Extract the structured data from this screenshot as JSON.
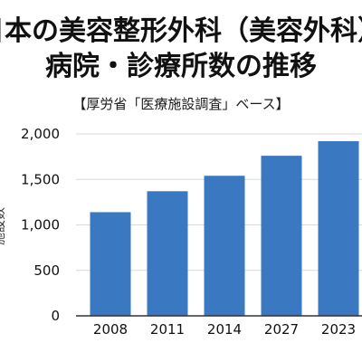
{
  "chart_data": {
    "type": "bar",
    "title_lines": [
      "日本の美容整形外科（美容外科）",
      "病院・診療所数の推移"
    ],
    "subtitle": "【厚労省「医療施設調査」ベース】",
    "categories": [
      "2008",
      "2011",
      "2014",
      "2027",
      "2023"
    ],
    "values": [
      1140,
      1370,
      1540,
      1760,
      1920
    ],
    "ylabel": "施設数",
    "ylim": [
      0,
      2000
    ],
    "yticks": [
      0,
      500,
      1000,
      1500,
      2000
    ],
    "ytick_labels": [
      "0",
      "500",
      "1,000",
      "1,500",
      "2,000"
    ],
    "grid": true,
    "bar_color": "#3a78c2",
    "grid_color": "#d9d9d9",
    "axis_color": "#333333"
  }
}
